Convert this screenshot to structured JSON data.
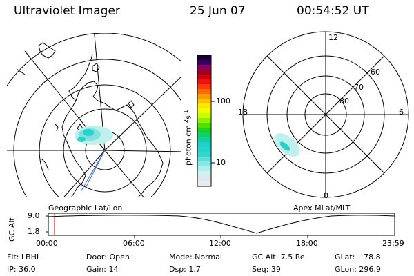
{
  "header": {
    "title": "Ultraviolet Imager",
    "date": "25 Jun 07",
    "time": "00:54:52 UT"
  },
  "geo_panel": {
    "label": "Geographic Lat/Lon"
  },
  "mlt_panel": {
    "label": "Apex MLat/MLT",
    "clock_labels": [
      "12",
      "18",
      "6",
      "0"
    ],
    "lat_labels": [
      "60",
      "70",
      "80"
    ]
  },
  "colorbar": {
    "unit": "photon cm",
    "unit_exp1": "-2",
    "unit_mid": "s",
    "unit_exp2": "-1",
    "ticks": [
      "100",
      "10"
    ]
  },
  "timeline": {
    "ylabel": "GC Alt",
    "y_ticks": [
      "9.0",
      "1.8"
    ],
    "x_ticks": [
      "00:00",
      "06:00",
      "12:00",
      "18:00",
      "23:59"
    ],
    "current_fraction": 0.038,
    "marker_color": "#e00000"
  },
  "info": {
    "flt": "Flt: LBHL",
    "ip": "IP: 36.0",
    "door": "Door: Open",
    "gain": "Gain: 14",
    "mode": "Mode: Normal",
    "dsp": "Dsp:     1.7",
    "gc_alt": "GC Alt: 7.5 Re",
    "seq": "Seq: 39",
    "glat": "GLat: −78.8",
    "glon": "GLon: 296.9"
  },
  "colors": {
    "ink": "#000000",
    "aurora_light": "#bff0ee",
    "aurora_mid": "#7fe0dc",
    "aurora_strong": "#27d3c9",
    "marker": "#e00000"
  }
}
